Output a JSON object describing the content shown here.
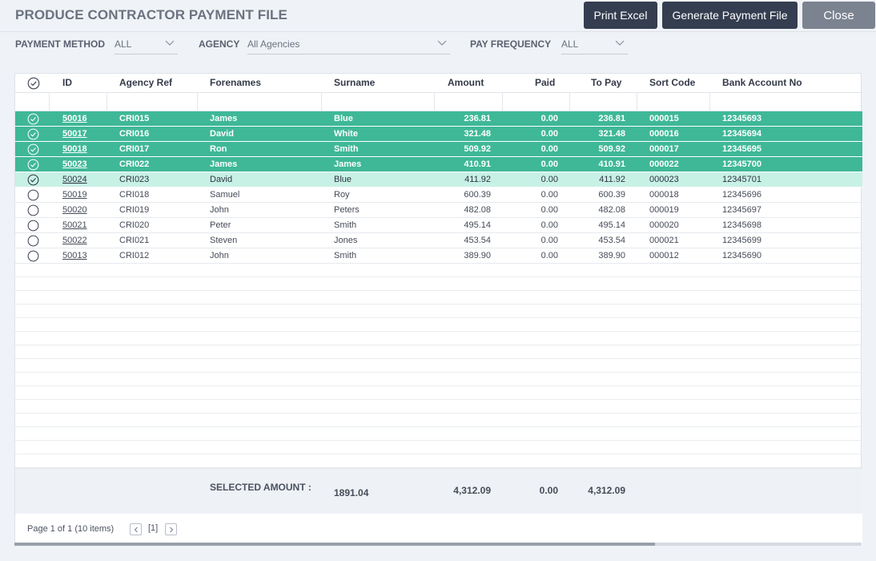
{
  "header": {
    "title": "PRODUCE CONTRACTOR PAYMENT FILE",
    "print_label": "Print Excel",
    "generate_label": "Generate Payment File",
    "close_label": "Close"
  },
  "filters": {
    "payment_method_label": "PAYMENT METHOD",
    "payment_method_value": "ALL",
    "agency_label": "AGENCY",
    "agency_value": "All Agencies",
    "pay_frequency_label": "PAY FREQUENCY",
    "pay_frequency_value": "ALL"
  },
  "columns": {
    "id": "ID",
    "agency_ref": "Agency Ref",
    "forenames": "Forenames",
    "surname": "Surname",
    "amount": "Amount",
    "paid": "Paid",
    "to_pay": "To Pay",
    "sort_code": "Sort Code",
    "bank_account": "Bank Account No"
  },
  "rows": [
    {
      "id": "50016",
      "agency_ref": "CRI015",
      "forenames": "James",
      "surname": "Blue",
      "amount": "236.81",
      "paid": "0.00",
      "to_pay": "236.81",
      "sort_code": "000015",
      "bank_account": "12345693",
      "selected": true
    },
    {
      "id": "50017",
      "agency_ref": "CRI016",
      "forenames": "David",
      "surname": "White",
      "amount": "321.48",
      "paid": "0.00",
      "to_pay": "321.48",
      "sort_code": "000016",
      "bank_account": "12345694",
      "selected": true
    },
    {
      "id": "50018",
      "agency_ref": "CRI017",
      "forenames": "Ron",
      "surname": "Smith",
      "amount": "509.92",
      "paid": "0.00",
      "to_pay": "509.92",
      "sort_code": "000017",
      "bank_account": "12345695",
      "selected": true
    },
    {
      "id": "50023",
      "agency_ref": "CRI022",
      "forenames": "James",
      "surname": "James",
      "amount": "410.91",
      "paid": "0.00",
      "to_pay": "410.91",
      "sort_code": "000022",
      "bank_account": "12345700",
      "selected": true
    },
    {
      "id": "50024",
      "agency_ref": "CRI023",
      "forenames": "David",
      "surname": "Blue",
      "amount": "411.92",
      "paid": "0.00",
      "to_pay": "411.92",
      "sort_code": "000023",
      "bank_account": "12345701",
      "selected": true,
      "current": true
    },
    {
      "id": "50019",
      "agency_ref": "CRI018",
      "forenames": "Samuel",
      "surname": "Roy",
      "amount": "600.39",
      "paid": "0.00",
      "to_pay": "600.39",
      "sort_code": "000018",
      "bank_account": "12345696",
      "selected": false
    },
    {
      "id": "50020",
      "agency_ref": "CRI019",
      "forenames": "John",
      "surname": "Peters",
      "amount": "482.08",
      "paid": "0.00",
      "to_pay": "482.08",
      "sort_code": "000019",
      "bank_account": "12345697",
      "selected": false
    },
    {
      "id": "50021",
      "agency_ref": "CRI020",
      "forenames": "Peter",
      "surname": "Smith",
      "amount": "495.14",
      "paid": "0.00",
      "to_pay": "495.14",
      "sort_code": "000020",
      "bank_account": "12345698",
      "selected": false
    },
    {
      "id": "50022",
      "agency_ref": "CRI021",
      "forenames": "Steven",
      "surname": "Jones",
      "amount": "453.54",
      "paid": "0.00",
      "to_pay": "453.54",
      "sort_code": "000021",
      "bank_account": "12345699",
      "selected": false
    },
    {
      "id": "50013",
      "agency_ref": "CRI012",
      "forenames": "John",
      "surname": "Smith",
      "amount": "389.90",
      "paid": "0.00",
      "to_pay": "389.90",
      "sort_code": "000012",
      "bank_account": "12345690",
      "selected": false
    }
  ],
  "summary": {
    "label": "SELECTED AMOUNT :",
    "selected_amount": "1891.04",
    "amount_total": "4,312.09",
    "paid_total": "0.00",
    "to_pay_total": "4,312.09"
  },
  "pager": {
    "info": "Page 1 of 1 (10 items)",
    "current_page": "[1]"
  },
  "colors": {
    "selected_row": "#3fb897",
    "current_row": "#c8f1e6",
    "button_dark": "#343e50",
    "button_close": "#7b8290"
  }
}
